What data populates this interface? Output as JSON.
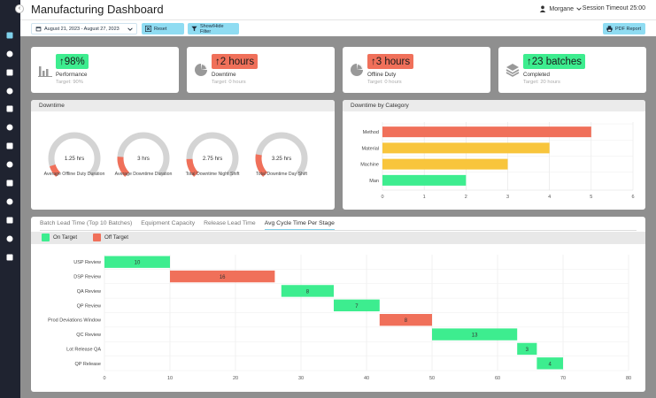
{
  "header": {
    "title": "Manufacturing Dashboard",
    "user": "Morgane",
    "session_timeout": "Session Timeout 25:00"
  },
  "toolbar": {
    "date_range": "August 21, 2023 - August 27, 2023",
    "reset_label": "Reset",
    "filter_label": "Show/Hide Filter",
    "pdf_label": "PDF Report"
  },
  "kpis": [
    {
      "value": "98%",
      "label": "Performance",
      "target": "Target: 90%",
      "color": "#3ded8f",
      "icon": "bar-chart-icon"
    },
    {
      "value": "2 hours",
      "label": "Downtime",
      "target": "Target: 0 hours",
      "color": "#f0705a",
      "icon": "pie-chart-icon"
    },
    {
      "value": "3 hours",
      "label": "Offline Duty",
      "target": "Target: 0 hours",
      "color": "#f0705a",
      "icon": "pie-chart-icon"
    },
    {
      "value": "23 batches",
      "label": "Completed",
      "target": "Target: 20 hours",
      "color": "#3ded8f",
      "icon": "layers-icon"
    }
  ],
  "downtime": {
    "title": "Downtime",
    "gauges": [
      {
        "value_text": "1.25 hrs",
        "fraction": 0.1,
        "label": "Average Offline Duty Duration"
      },
      {
        "value_text": "3 hrs",
        "fraction": 0.18,
        "label": "Average Downtime Duration"
      },
      {
        "value_text": "2.75 hrs",
        "fraction": 0.16,
        "label": "Total Downtime Night Shift"
      },
      {
        "value_text": "3.25 hrs",
        "fraction": 0.2,
        "label": "Total Downtime Day Shift"
      }
    ]
  },
  "bottom": {
    "tabs": [
      "Batch Lead Time (Top 10 Batches)",
      "Equipment Capacity",
      "Release Lead Time",
      "Avg Cycle Time Per Stage"
    ],
    "active_tab": 3,
    "legend": [
      {
        "label": "On Target",
        "color": "#3ded8f"
      },
      {
        "label": "Off Target",
        "color": "#f0705a"
      }
    ]
  },
  "colors": {
    "on_target": "#3ded8f",
    "off_target": "#f0705a",
    "warning": "#f8c53c",
    "accent": "#8fdcf2"
  },
  "chart_data": [
    {
      "type": "bar",
      "orientation": "horizontal",
      "title": "Downtime by Category",
      "categories": [
        "Method",
        "Material",
        "Machine",
        "Man"
      ],
      "values": [
        5,
        4,
        3,
        2
      ],
      "colors": [
        "#f0705a",
        "#f8c53c",
        "#f8c53c",
        "#3ded8f"
      ],
      "xlim": [
        0,
        6
      ],
      "xticks": [
        0,
        1,
        2,
        3,
        4,
        5,
        6
      ],
      "grid": true
    },
    {
      "type": "bar",
      "orientation": "horizontal-gantt",
      "title": "Avg Cycle Time Per Stage",
      "categories": [
        "USP Review",
        "DSP Review",
        "QA Review",
        "QP Review",
        "Prod Deviations Window",
        "QC Review",
        "Lot Release QA",
        "QP Release"
      ],
      "start": [
        0,
        10,
        27,
        35,
        42,
        50,
        63,
        66
      ],
      "values": [
        10,
        16,
        8,
        7,
        8,
        13,
        3,
        4
      ],
      "status": [
        "on",
        "off",
        "on",
        "on",
        "off",
        "on",
        "on",
        "on"
      ],
      "xlim": [
        0,
        80
      ],
      "xticks": [
        0,
        10,
        20,
        30,
        40,
        50,
        60,
        70,
        80
      ],
      "grid": true
    }
  ]
}
